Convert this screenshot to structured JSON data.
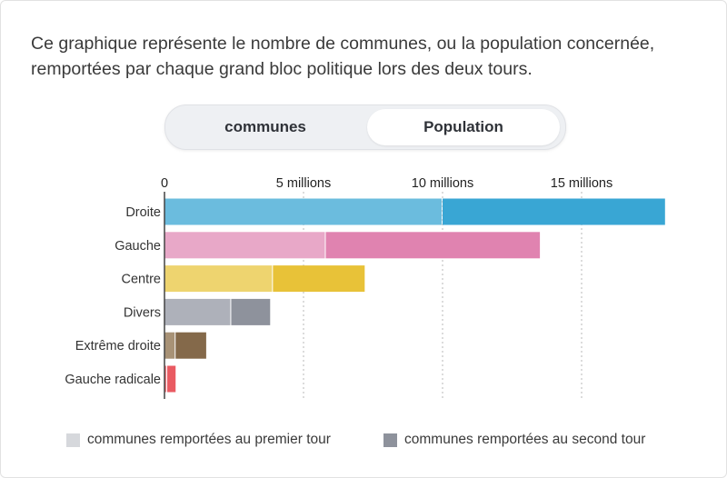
{
  "intro": "Ce graphique représente le nombre de communes, ou la population concernée, remportées par chaque grand bloc politique lors des deux tours.",
  "toggle": {
    "options": [
      "communes",
      "Population"
    ],
    "selected": "Population"
  },
  "legend": {
    "first": "communes remportées au premier tour",
    "second": "communes remportées au second tour",
    "first_color": "#d6d8dc",
    "second_color": "#8e929c"
  },
  "chart_data": {
    "type": "bar",
    "orientation": "horizontal",
    "stacked": true,
    "categories": [
      "Droite",
      "Gauche",
      "Centre",
      "Divers",
      "Extrême droite",
      "Gauche radicale"
    ],
    "series": [
      {
        "name": "communes remportées au premier tour",
        "values": [
          10.0,
          5.8,
          3.9,
          2.4,
          0.4,
          0.1
        ]
      },
      {
        "name": "communes remportées au second tour",
        "values": [
          8.0,
          7.7,
          3.3,
          1.4,
          1.1,
          0.3
        ]
      }
    ],
    "colors": [
      [
        "#6bbcde",
        "#39a6d4"
      ],
      [
        "#e8a8c8",
        "#e083b0"
      ],
      [
        "#eed46f",
        "#e8c238"
      ],
      [
        "#aeb1ba",
        "#8e929c"
      ],
      [
        "#a89276",
        "#84694a"
      ],
      [
        "#f07f86",
        "#e95a62"
      ]
    ],
    "xticks": [
      0,
      5,
      10,
      15
    ],
    "xtick_labels": [
      "0",
      "5 millions",
      "10 millions",
      "15 millions"
    ],
    "xlim": [
      0,
      18
    ],
    "unit": "millions",
    "grid": true
  }
}
